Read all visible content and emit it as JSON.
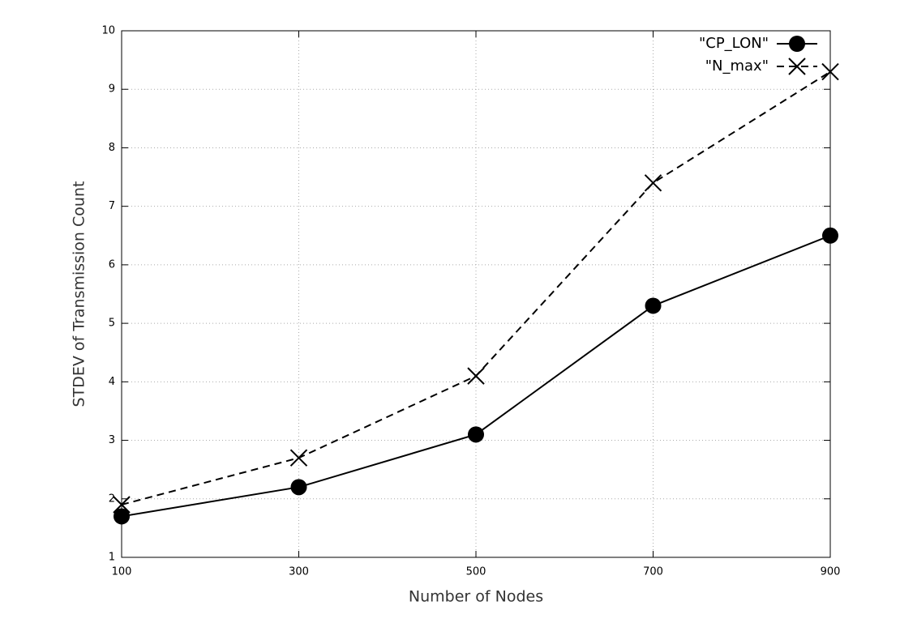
{
  "chart_data": {
    "type": "line",
    "xlabel": "Number of Nodes",
    "ylabel": "STDEV of Transmission Count",
    "x": [
      100,
      300,
      500,
      700,
      900
    ],
    "xlim": [
      100,
      900
    ],
    "xticks": [
      100,
      300,
      500,
      700,
      900
    ],
    "ylim": [
      1,
      10
    ],
    "yticks": [
      1,
      2,
      3,
      4,
      5,
      6,
      7,
      8,
      9,
      10
    ],
    "grid": true,
    "legend": "top-right",
    "series": [
      {
        "name": "\"CP_LON\"",
        "color": "#000000",
        "linestyle": "solid",
        "marker": "circle",
        "values": [
          1.7,
          2.2,
          3.1,
          5.3,
          6.5
        ]
      },
      {
        "name": "\"N_max\"",
        "color": "#000000",
        "linestyle": "dashed",
        "marker": "x",
        "values": [
          1.9,
          2.7,
          4.1,
          7.4,
          9.3
        ]
      }
    ]
  }
}
